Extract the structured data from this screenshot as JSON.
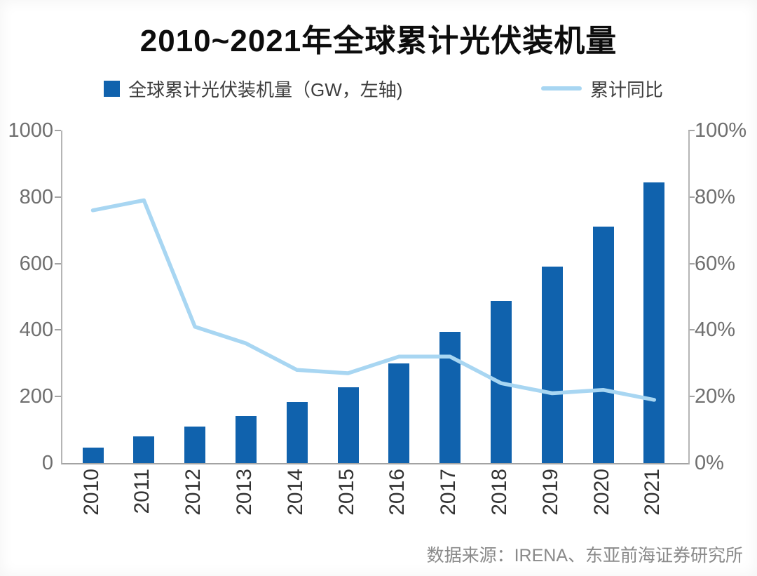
{
  "title": "2010~2021年全球累计光伏装机量",
  "legend": {
    "bar_label": "全球累计光伏装机量（GW，左轴)",
    "line_label": "累计同比"
  },
  "source": "数据来源：IRENA、东亚前海证券研究所",
  "colors": {
    "bar": "#1062ad",
    "line": "#a8d6f2",
    "axis_text": "#6f6f6f",
    "title_text": "#0d0d0d"
  },
  "chart_data": {
    "type": "bar",
    "subtype": "combo-bar-line",
    "title": "2010~2021年全球累计光伏装机量",
    "categories": [
      "2010",
      "2011",
      "2012",
      "2013",
      "2014",
      "2015",
      "2016",
      "2017",
      "2018",
      "2019",
      "2020",
      "2021"
    ],
    "series": [
      {
        "name": "全球累计光伏装机量（GW，左轴)",
        "type": "bar",
        "axis": "left",
        "color": "#1062ad",
        "values": [
          47,
          80,
          110,
          142,
          183,
          229,
          300,
          394,
          488,
          590,
          712,
          845
        ]
      },
      {
        "name": "累计同比",
        "type": "line",
        "axis": "right",
        "color": "#a8d6f2",
        "values": [
          76,
          79,
          41,
          36,
          28,
          27,
          32,
          32,
          24,
          21,
          22,
          19
        ]
      }
    ],
    "left_axis": {
      "min": 0,
      "max": 1000,
      "step": 200,
      "tick_labels": [
        "0",
        "200",
        "400",
        "600",
        "800",
        "1000"
      ],
      "unit": "GW"
    },
    "right_axis": {
      "min": 0,
      "max": 100,
      "step": 20,
      "tick_labels": [
        "0%",
        "20%",
        "40%",
        "60%",
        "80%",
        "100%"
      ],
      "unit": "%"
    },
    "grid": false,
    "legend_position": "top"
  }
}
